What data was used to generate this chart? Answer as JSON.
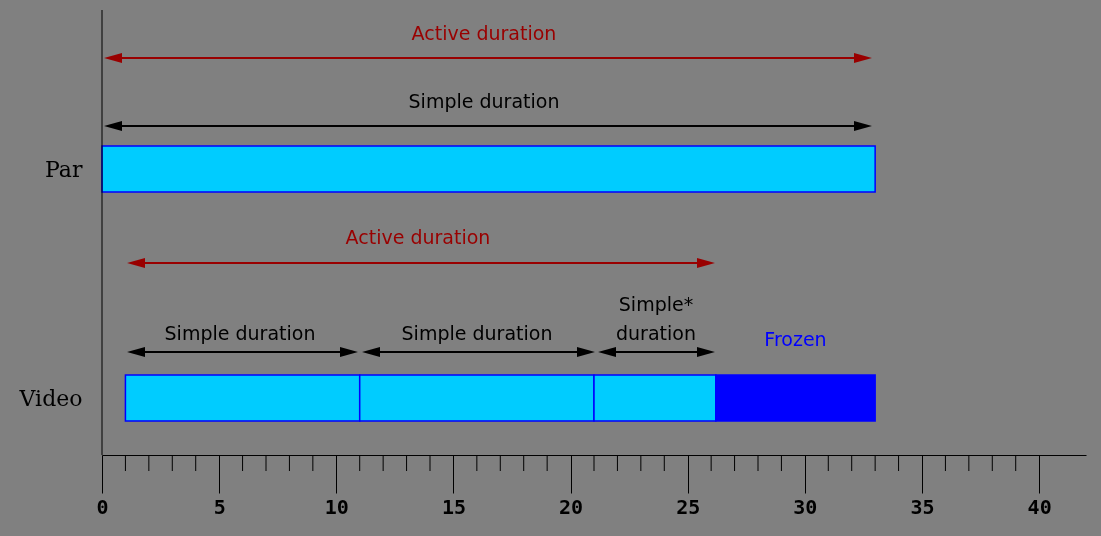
{
  "chart_data": {
    "type": "bar",
    "orientation": "horizontal",
    "categories": [
      "Par",
      "Video"
    ],
    "series": [
      {
        "color": "#00ccff",
        "values": [
          33,
          10
        ],
        "base": [
          0,
          1
        ]
      },
      {
        "color": "#00ccff",
        "values": [
          null,
          10
        ],
        "base": [
          null,
          11
        ]
      },
      {
        "color": "#00ccff",
        "values": [
          null,
          5.2
        ],
        "base": [
          null,
          21
        ]
      },
      {
        "name": "Frozen",
        "color": "#0000ff",
        "values": [
          null,
          6.8
        ],
        "base": [
          null,
          26.2
        ]
      }
    ],
    "xlim": [
      0,
      42
    ],
    "xticks": [
      0,
      {
        "value": 1,
        "label": null
      },
      {
        "value": 2,
        "label": null
      },
      {
        "value": 3,
        "label": null
      },
      {
        "value": 4,
        "label": null
      },
      5,
      {
        "value": 6,
        "label": null
      },
      {
        "value": 7,
        "label": null
      },
      {
        "value": 8,
        "label": null
      },
      {
        "value": 9,
        "label": null
      },
      10,
      {
        "value": 11,
        "label": null
      },
      {
        "value": 12,
        "label": null
      },
      {
        "value": 13,
        "label": null
      },
      {
        "value": 14,
        "label": null
      },
      15,
      {
        "value": 16,
        "label": null
      },
      {
        "value": 17,
        "label": null
      },
      {
        "value": 18,
        "label": null
      },
      {
        "value": 19,
        "label": null
      },
      20,
      {
        "value": 21,
        "label": null
      },
      {
        "value": 22,
        "label": null
      },
      {
        "value": 23,
        "label": null
      },
      {
        "value": 24,
        "label": null
      },
      25,
      {
        "value": 26,
        "label": null
      },
      {
        "value": 27,
        "label": null
      },
      {
        "value": 28,
        "label": null
      },
      {
        "value": 29,
        "label": null
      },
      30,
      {
        "value": 31,
        "label": null
      },
      {
        "value": 32,
        "label": null
      },
      {
        "value": 33,
        "label": null
      },
      {
        "value": 34,
        "label": null
      },
      35,
      {
        "value": 36,
        "label": null
      },
      {
        "value": 37,
        "label": null
      },
      {
        "value": 38,
        "label": null
      },
      {
        "value": 39,
        "label": null
      },
      40
    ],
    "grid": false,
    "annotations": [
      "Active duration",
      "Simple duration",
      "Active duration",
      "Simple duration",
      "Simple duration",
      "Simple*\nduration"
    ]
  }
}
